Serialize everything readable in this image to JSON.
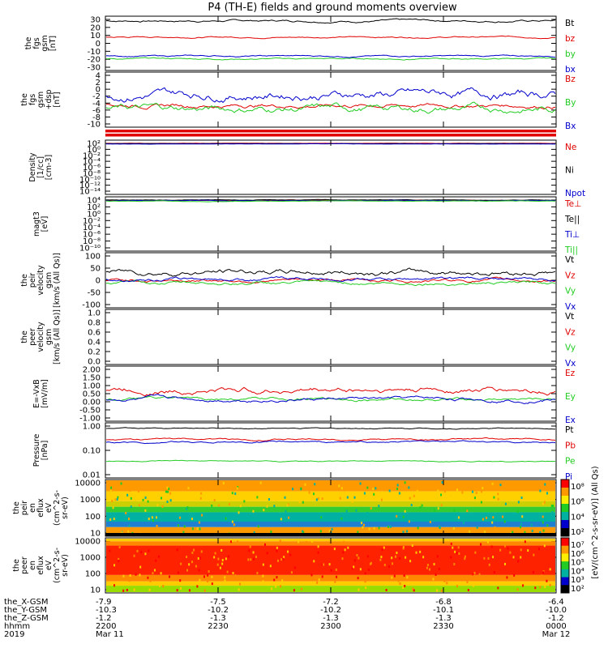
{
  "title": "P4 (TH-E) fields and ground moments overview",
  "colors": {
    "black": "#000000",
    "red": "#e00000",
    "green": "#22cc22",
    "blue": "#0000cc",
    "orange": "#ff9900",
    "teal": "#00b0a0"
  },
  "chart_data": [
    {
      "type": "line",
      "ylabel": [
        "the",
        "fgs",
        "gsm",
        "[nT]"
      ],
      "yticks": [
        "30",
        "20",
        "10",
        "0",
        "-10",
        "-20",
        "-30"
      ],
      "ylim": [
        -30,
        30
      ],
      "series": [
        {
          "name": "Bt",
          "color": "black",
          "base": 25,
          "amp": 3
        },
        {
          "name": "bz",
          "color": "red",
          "base": 7,
          "amp": 2
        },
        {
          "name": "by",
          "color": "green",
          "base": -17,
          "amp": 2
        },
        {
          "name": "bx",
          "color": "blue",
          "base": -14,
          "amp": 2
        }
      ]
    },
    {
      "type": "line",
      "ylabel": [
        "the",
        "fgs",
        "gsm",
        "+dsp",
        "[nT]"
      ],
      "yticks": [
        "4",
        "2",
        "0",
        "-2",
        "-4",
        "-6",
        "-8",
        "-10"
      ],
      "ylim": [
        -11,
        4
      ],
      "series": [
        {
          "name": "Bz",
          "color": "red",
          "base": -5,
          "amp": 1.5
        },
        {
          "name": "By",
          "color": "green",
          "base": -6,
          "amp": 2.5
        },
        {
          "name": "Bx",
          "color": "blue",
          "base": -2,
          "amp": 3
        }
      ]
    },
    {
      "type": "line",
      "ylabel": [
        "Density",
        "[1/cc]",
        "[cm-3]"
      ],
      "yticks": [
        "10²",
        "10⁰",
        "10⁻²",
        "10⁻⁴",
        "10⁻⁶",
        "10⁻⁸",
        "10⁻¹⁰",
        "10⁻¹²",
        "10⁻¹⁴"
      ],
      "ylim": [
        -15,
        2
      ],
      "series": [
        {
          "name": "Ne",
          "color": "red",
          "base": 1,
          "amp": 0.1
        },
        {
          "name": "Ni",
          "color": "black",
          "base": 0.9,
          "amp": 0.1
        },
        {
          "name": "Npot",
          "color": "blue",
          "base": 0.8,
          "amp": 0.1
        }
      ]
    },
    {
      "type": "line",
      "ylabel": [
        "magt3",
        "[eV]"
      ],
      "yticks": [
        "10⁴",
        "10²",
        "10⁰",
        "10⁻²",
        "10⁻⁴",
        "10⁻⁶",
        "10⁻⁸",
        "10⁻¹⁰"
      ],
      "ylim": [
        -11,
        4.5
      ],
      "series": [
        {
          "name": "Te⊥",
          "color": "red",
          "base": 3.5,
          "amp": 0.2
        },
        {
          "name": "Te||",
          "color": "black",
          "base": 3.6,
          "amp": 0.2
        },
        {
          "name": "Ti⊥",
          "color": "blue",
          "base": 3.4,
          "amp": 0.2
        },
        {
          "name": "Ti||",
          "color": "green",
          "base": 3.3,
          "amp": 0.2
        }
      ]
    },
    {
      "type": "line",
      "ylabel": [
        "the",
        "peir",
        "velocity",
        "gsm",
        "[km/s (All Qs)]"
      ],
      "yticks": [
        "100",
        "50",
        "0",
        "-50",
        "-100"
      ],
      "ylim": [
        -100,
        100
      ],
      "series": [
        {
          "name": "Vt",
          "color": "black",
          "base": 30,
          "amp": 25
        },
        {
          "name": "Vz",
          "color": "red",
          "base": 0,
          "amp": 15
        },
        {
          "name": "Vy",
          "color": "green",
          "base": -10,
          "amp": 15
        },
        {
          "name": "Vx",
          "color": "blue",
          "base": 5,
          "amp": 15
        }
      ]
    },
    {
      "type": "line",
      "ylabel": [
        "the",
        "peer",
        "velocity",
        "gsm",
        "[km/s (All Qs)]"
      ],
      "yticks": [
        "1.0",
        "0.8",
        "0.6",
        "0.4",
        "0.2",
        "0.0"
      ],
      "ylim": [
        0,
        1
      ],
      "series": [
        {
          "name": "Vt",
          "color": "black",
          "base": -5,
          "amp": 0
        },
        {
          "name": "Vz",
          "color": "red",
          "base": -5,
          "amp": 0
        },
        {
          "name": "Vy",
          "color": "green",
          "base": -5,
          "amp": 0
        },
        {
          "name": "Vx",
          "color": "blue",
          "base": -5,
          "amp": 0
        }
      ]
    },
    {
      "type": "line",
      "ylabel": [
        "E=-VxB",
        "[mV/m]"
      ],
      "yticks": [
        "2.00",
        "1.50",
        "1.00",
        "0.50",
        "0.00",
        "-0.50",
        "-1.00"
      ],
      "ylim": [
        -1,
        2
      ],
      "series": [
        {
          "name": "Ez",
          "color": "red",
          "base": 0.7,
          "amp": 0.4
        },
        {
          "name": "Ey",
          "color": "green",
          "base": 0.2,
          "amp": 0.2
        },
        {
          "name": "Ex",
          "color": "blue",
          "base": 0.2,
          "amp": 0.25
        }
      ]
    },
    {
      "type": "line",
      "ylabel": [
        "Pressure",
        "[nPa]"
      ],
      "yticks": [
        "1.00",
        "0.10",
        "0.01"
      ],
      "ylim": [
        -2,
        0
      ],
      "series": [
        {
          "name": "Pt",
          "color": "black",
          "base": -0.2,
          "amp": 0.05
        },
        {
          "name": "Pb",
          "color": "red",
          "base": -0.6,
          "amp": 0.08
        },
        {
          "name": "Pe",
          "color": "green",
          "base": -1.4,
          "amp": 0.05
        },
        {
          "name": "Pi",
          "color": "blue",
          "base": -0.7,
          "amp": 0.08
        }
      ]
    },
    {
      "type": "heatmap",
      "ylabel": [
        "the",
        "peir",
        "en",
        "eflux",
        "eV",
        "(cm^2-s-",
        "sr-eV)"
      ],
      "yticks": [
        "10000",
        "1000",
        "100",
        "10"
      ],
      "colorbar": [
        "10⁸",
        "10⁶",
        "10⁴",
        "10²"
      ]
    },
    {
      "type": "heatmap",
      "ylabel": [
        "the",
        "peer",
        "en",
        "eflux",
        "eV",
        "(cm^2-s-",
        "sr-eV)"
      ],
      "yticks": [
        "10000",
        "1000",
        "100",
        "10"
      ],
      "colorbar": [
        "10⁷",
        "10⁶",
        "10⁵",
        "10⁴",
        "10³",
        "10²"
      ]
    }
  ],
  "colorbar_label": "[eV/(cm^2-s-sr-eV)] (All Qs)",
  "xaxis": {
    "rows": [
      {
        "label": "the_X-GSM",
        "values": [
          "-7.9",
          "-7.5",
          "-7.2",
          "-6.8",
          "-6.4"
        ]
      },
      {
        "label": "the_Y-GSM",
        "values": [
          "-10.3",
          "-10.2",
          "-10.2",
          "-10.1",
          "-10.0"
        ]
      },
      {
        "label": "the_Z-GSM",
        "values": [
          "-1.2",
          "-1.3",
          "-1.3",
          "-1.3",
          "-1.2"
        ]
      },
      {
        "label": "hhmm",
        "values": [
          "2200",
          "2230",
          "2300",
          "2330",
          "0000"
        ]
      },
      {
        "label": "2019",
        "values": [
          "Mar 11",
          "",
          "",
          "",
          "Mar 12"
        ]
      }
    ]
  }
}
